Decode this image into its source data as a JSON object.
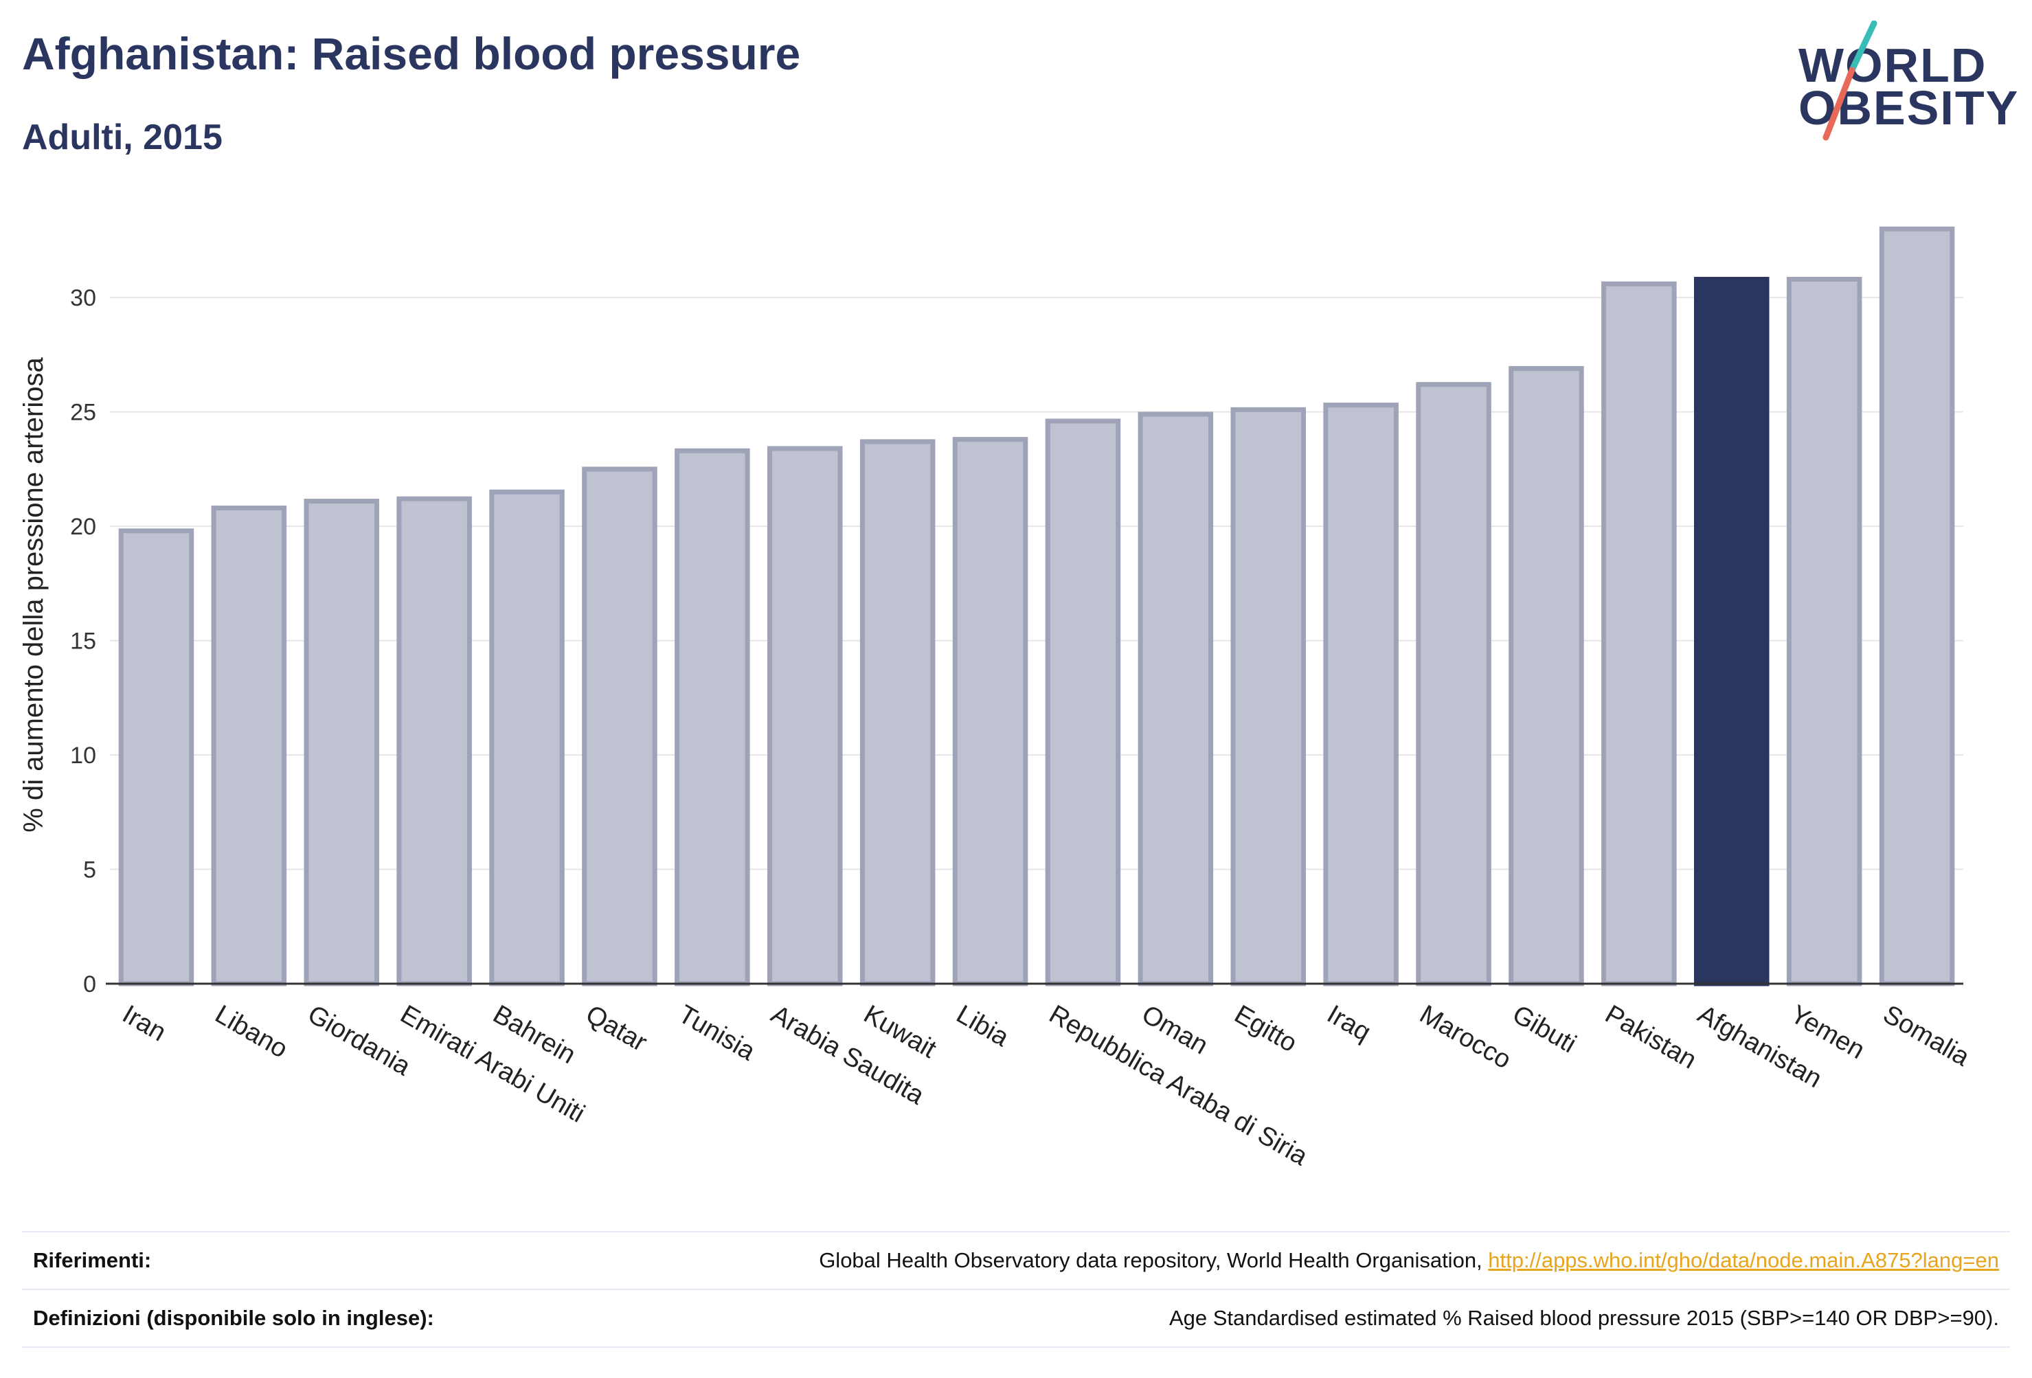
{
  "header": {
    "title": "Afghanistan: Raised blood pressure",
    "subtitle": "Adulti, 2015"
  },
  "logo": {
    "line1": "WORLD",
    "line2": "OBESITY",
    "colors": {
      "text": "#2a3560",
      "slash_top": "#38bdb6",
      "slash_bottom": "#e8685a"
    }
  },
  "chart_data": {
    "type": "bar",
    "title": "Afghanistan: Raised blood pressure",
    "subtitle": "Adulti, 2015",
    "ylabel": "% di aumento della pressione arteriosa",
    "xlabel": "",
    "ylim": [
      0,
      34
    ],
    "yticks": [
      0,
      5,
      10,
      15,
      20,
      25,
      30
    ],
    "grid": true,
    "highlight": "Afghanistan",
    "colors": {
      "bar": "#bfc2d0",
      "bar_border": "#9ea3b8",
      "highlight": "#2a3560"
    },
    "categories": [
      "Iran",
      "Libano",
      "Giordania",
      "Emirati Arabi Uniti",
      "Bahrein",
      "Qatar",
      "Tunisia",
      "Arabia Saudita",
      "Kuwait",
      "Libia",
      "Repubblica Araba di Siria",
      "Oman",
      "Egitto",
      "Iraq",
      "Marocco",
      "Gibuti",
      "Pakistan",
      "Afghanistan",
      "Yemen",
      "Somalia"
    ],
    "values": [
      19.8,
      20.8,
      21.1,
      21.2,
      21.5,
      22.5,
      23.3,
      23.4,
      23.7,
      23.8,
      24.6,
      24.9,
      25.1,
      25.3,
      26.2,
      26.9,
      30.6,
      30.8,
      30.8,
      33.0
    ]
  },
  "footer": {
    "references_label": "Riferimenti:",
    "references_text": "Global Health Observatory data repository, World Health Organisation, ",
    "references_link": "http://apps.who.int/gho/data/node.main.A875?lang=en",
    "definitions_label": "Definizioni (disponibile solo in inglese):",
    "definitions_text": "Age Standardised estimated % Raised blood pressure 2015 (SBP>=140 OR DBP>=90)."
  }
}
